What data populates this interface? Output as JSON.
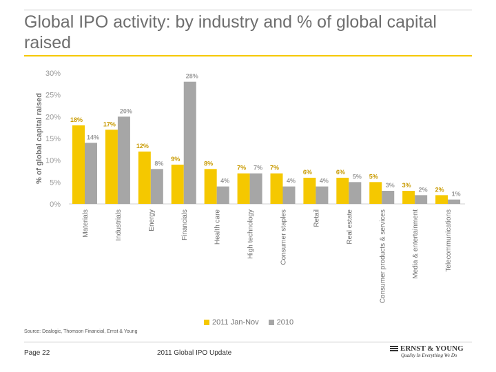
{
  "header": {
    "title": "Global IPO activity: by industry and % of global capital raised"
  },
  "chart_data": {
    "type": "bar",
    "ylabel": "% of global capital raised",
    "ylim": [
      0,
      30
    ],
    "yticks": [
      "0%",
      "5%",
      "10%",
      "15%",
      "20%",
      "25%",
      "30%"
    ],
    "categories": [
      "Materials",
      "Industrials",
      "Energy",
      "Financials",
      "Health care",
      "High technology",
      "Consumer staples",
      "Retail",
      "Real estate",
      "Consumer products & services",
      "Media & entertainment",
      "Telecommunications"
    ],
    "series": [
      {
        "name": "2011 Jan-Nov",
        "color": "#f5c800",
        "values": [
          18,
          17,
          12,
          9,
          8,
          7,
          7,
          6,
          6,
          5,
          3,
          2
        ],
        "labels": [
          "18%",
          "17%",
          "12%",
          "9%",
          "8%",
          "7%",
          "7%",
          "6%",
          "6%",
          "5%",
          "3%",
          "2%"
        ]
      },
      {
        "name": "2010",
        "color": "#a6a6a6",
        "values": [
          14,
          20,
          8,
          28,
          4,
          7,
          4,
          4,
          5,
          3,
          2,
          1
        ],
        "labels": [
          "14%",
          "20%",
          "8%",
          "28%",
          "4%",
          "7%",
          "4%",
          "4%",
          "5%",
          "3%",
          "2%",
          "1%"
        ]
      }
    ],
    "legend_position": "bottom",
    "grid": false
  },
  "footer": {
    "source": "Source: Dealogic, Thomson Financial, Ernst & Young",
    "page": "Page 22",
    "doc_title": "2011 Global IPO Update",
    "logo_text": "ERNST & YOUNG",
    "tagline": "Quality In Everything We Do"
  }
}
